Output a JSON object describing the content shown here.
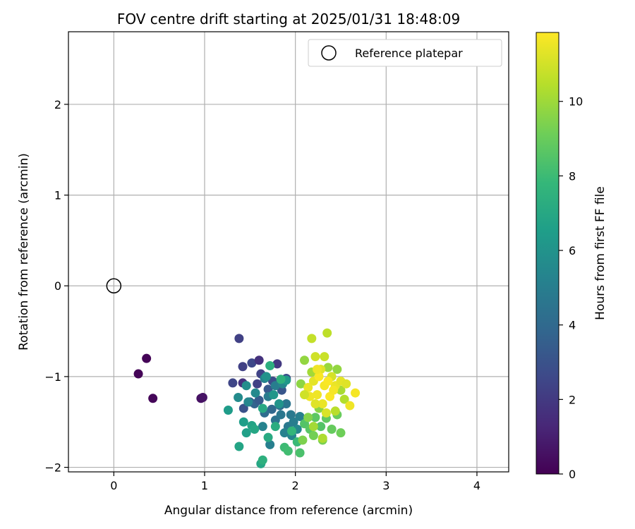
{
  "chart_data": {
    "type": "scatter",
    "title": "FOV centre drift starting at 2025/01/31 18:48:09",
    "xlabel": "Angular distance from reference (arcmin)",
    "ylabel": "Rotation from reference (arcmin)",
    "xlim": [
      -0.5,
      4.35
    ],
    "ylim": [
      -2.05,
      2.8
    ],
    "xticks": [
      0,
      1,
      2,
      3,
      4
    ],
    "xtick_labels": [
      "0",
      "1",
      "2",
      "3",
      "4"
    ],
    "yticks": [
      -2,
      -1,
      0,
      1,
      2
    ],
    "ytick_labels": [
      "−2",
      "−1",
      "0",
      "1",
      "2"
    ],
    "grid": true,
    "legend": {
      "location": "top-right",
      "entries": [
        "Reference platepar"
      ]
    },
    "reference_point": {
      "x": 0,
      "y": 0,
      "label": "Reference platepar"
    },
    "colorbar": {
      "label": "Hours from first FF file",
      "range": [
        0,
        11.85
      ],
      "ticks": [
        0,
        2,
        4,
        6,
        8,
        10
      ],
      "tick_labels": [
        "0",
        "2",
        "4",
        "6",
        "8",
        "10"
      ],
      "colormap": "viridis"
    },
    "points": [
      [
        0.27,
        -0.97,
        0.1
      ],
      [
        0.36,
        -0.8,
        0.1
      ],
      [
        0.43,
        -1.24,
        0.2
      ],
      [
        0.96,
        -1.24,
        0.5
      ],
      [
        0.98,
        -1.23,
        0.6
      ],
      [
        1.31,
        -1.07,
        2.5
      ],
      [
        1.38,
        -0.58,
        2.3
      ],
      [
        1.42,
        -1.07,
        1.7
      ],
      [
        1.42,
        -0.89,
        2.3
      ],
      [
        1.52,
        -0.85,
        2.6
      ],
      [
        1.6,
        -0.82,
        1.7
      ],
      [
        1.58,
        -1.08,
        2.3
      ],
      [
        1.62,
        -0.97,
        2.4
      ],
      [
        1.7,
        -1.14,
        3.3
      ],
      [
        1.75,
        -1.05,
        2.8
      ],
      [
        1.8,
        -0.86,
        2.0
      ],
      [
        1.85,
        -1.15,
        3.2
      ],
      [
        1.9,
        -1.02,
        2.8
      ],
      [
        1.43,
        -1.35,
        3.0
      ],
      [
        1.5,
        -1.28,
        3.5
      ],
      [
        1.55,
        -1.3,
        3.8
      ],
      [
        1.6,
        -1.26,
        3.4
      ],
      [
        1.66,
        -1.4,
        4.2
      ],
      [
        1.74,
        -1.36,
        4.0
      ],
      [
        1.78,
        -1.48,
        4.5
      ],
      [
        1.83,
        -1.32,
        4.3
      ],
      [
        1.9,
        -1.3,
        4.6
      ],
      [
        1.95,
        -1.42,
        4.8
      ],
      [
        1.92,
        -1.55,
        4.8
      ],
      [
        1.98,
        -1.5,
        5.0
      ],
      [
        2.05,
        -1.44,
        5.1
      ],
      [
        1.88,
        -1.62,
        5.2
      ],
      [
        1.96,
        -1.65,
        5.4
      ],
      [
        2.02,
        -1.58,
        5.5
      ],
      [
        1.72,
        -1.75,
        5.1
      ],
      [
        1.64,
        -1.55,
        5.3
      ],
      [
        1.84,
        -1.42,
        4.7
      ],
      [
        1.7,
        -1.22,
        4.9
      ],
      [
        1.78,
        -1.1,
        5.0
      ],
      [
        1.66,
        -1.02,
        5.2
      ],
      [
        1.86,
        -1.08,
        5.5
      ],
      [
        1.56,
        -1.18,
        5.6
      ],
      [
        1.48,
        -1.28,
        5.5
      ],
      [
        1.37,
        -1.23,
        5.7
      ],
      [
        1.46,
        -1.1,
        5.8
      ],
      [
        1.68,
        -1.0,
        6.0
      ],
      [
        1.76,
        -1.2,
        6.2
      ],
      [
        1.82,
        -1.3,
        6.1
      ],
      [
        1.9,
        -1.04,
        6.3
      ],
      [
        1.26,
        -1.37,
        6.5
      ],
      [
        1.43,
        -1.5,
        6.6
      ],
      [
        1.46,
        -1.62,
        6.7
      ],
      [
        1.52,
        -1.54,
        6.8
      ],
      [
        1.38,
        -1.77,
        6.9
      ],
      [
        1.55,
        -1.58,
        7.0
      ],
      [
        1.64,
        -1.35,
        7.1
      ],
      [
        1.7,
        -1.67,
        7.2
      ],
      [
        1.78,
        -1.55,
        7.3
      ],
      [
        1.62,
        -1.96,
        7.0
      ],
      [
        1.64,
        -1.92,
        7.5
      ],
      [
        1.72,
        -0.88,
        7.4
      ],
      [
        1.84,
        -1.03,
        7.6
      ],
      [
        1.96,
        -1.6,
        7.8
      ],
      [
        2.02,
        -1.72,
        8.0
      ],
      [
        1.88,
        -1.78,
        8.1
      ],
      [
        1.92,
        -1.82,
        8.2
      ],
      [
        2.05,
        -1.84,
        8.4
      ],
      [
        2.1,
        -1.52,
        8.6
      ],
      [
        2.16,
        -1.58,
        8.7
      ],
      [
        2.22,
        -1.45,
        8.8
      ],
      [
        2.28,
        -1.55,
        8.6
      ],
      [
        2.34,
        -1.46,
        8.9
      ],
      [
        2.4,
        -1.58,
        9.0
      ],
      [
        2.46,
        -1.42,
        9.1
      ],
      [
        2.5,
        -1.62,
        9.2
      ],
      [
        2.2,
        -1.65,
        9.3
      ],
      [
        2.3,
        -1.7,
        9.4
      ],
      [
        2.08,
        -1.7,
        9.5
      ],
      [
        2.14,
        -1.45,
        9.6
      ],
      [
        2.26,
        -1.35,
        9.7
      ],
      [
        2.06,
        -1.08,
        9.8
      ],
      [
        2.1,
        -0.82,
        9.9
      ],
      [
        2.18,
        -0.95,
        10.2
      ],
      [
        2.36,
        -0.9,
        10.0
      ],
      [
        2.46,
        -0.92,
        9.9
      ],
      [
        2.5,
        -1.15,
        10.3
      ],
      [
        2.54,
        -1.25,
        10.5
      ],
      [
        2.44,
        -1.38,
        10.6
      ],
      [
        2.18,
        -0.58,
        10.8
      ],
      [
        2.35,
        -0.52,
        10.7
      ],
      [
        2.22,
        -0.78,
        11.0
      ],
      [
        2.32,
        -0.78,
        10.9
      ],
      [
        2.28,
        -0.92,
        11.3
      ],
      [
        2.4,
        -1.0,
        11.1
      ],
      [
        2.2,
        -1.05,
        11.4
      ],
      [
        2.14,
        -1.12,
        11.5
      ],
      [
        2.24,
        -1.2,
        11.6
      ],
      [
        2.32,
        -1.1,
        11.7
      ],
      [
        2.38,
        -1.22,
        11.8
      ],
      [
        2.44,
        -1.1,
        11.5
      ],
      [
        2.5,
        -1.05,
        11.4
      ],
      [
        2.56,
        -1.08,
        11.3
      ],
      [
        2.6,
        -1.32,
        11.6
      ],
      [
        2.66,
        -1.18,
        11.7
      ],
      [
        2.3,
        -1.3,
        11.5
      ],
      [
        2.34,
        -1.4,
        11.2
      ],
      [
        2.26,
        -1.0,
        11.8
      ],
      [
        2.16,
        -1.22,
        11.6
      ],
      [
        2.22,
        -1.3,
        11.3
      ],
      [
        2.36,
        -1.05,
        11.8
      ],
      [
        2.42,
        -1.15,
        11.7
      ],
      [
        2.3,
        -1.68,
        10.4
      ],
      [
        2.2,
        -1.55,
        10.2
      ],
      [
        2.1,
        -1.2,
        11.0
      ],
      [
        2.24,
        -0.92,
        11.6
      ]
    ]
  }
}
